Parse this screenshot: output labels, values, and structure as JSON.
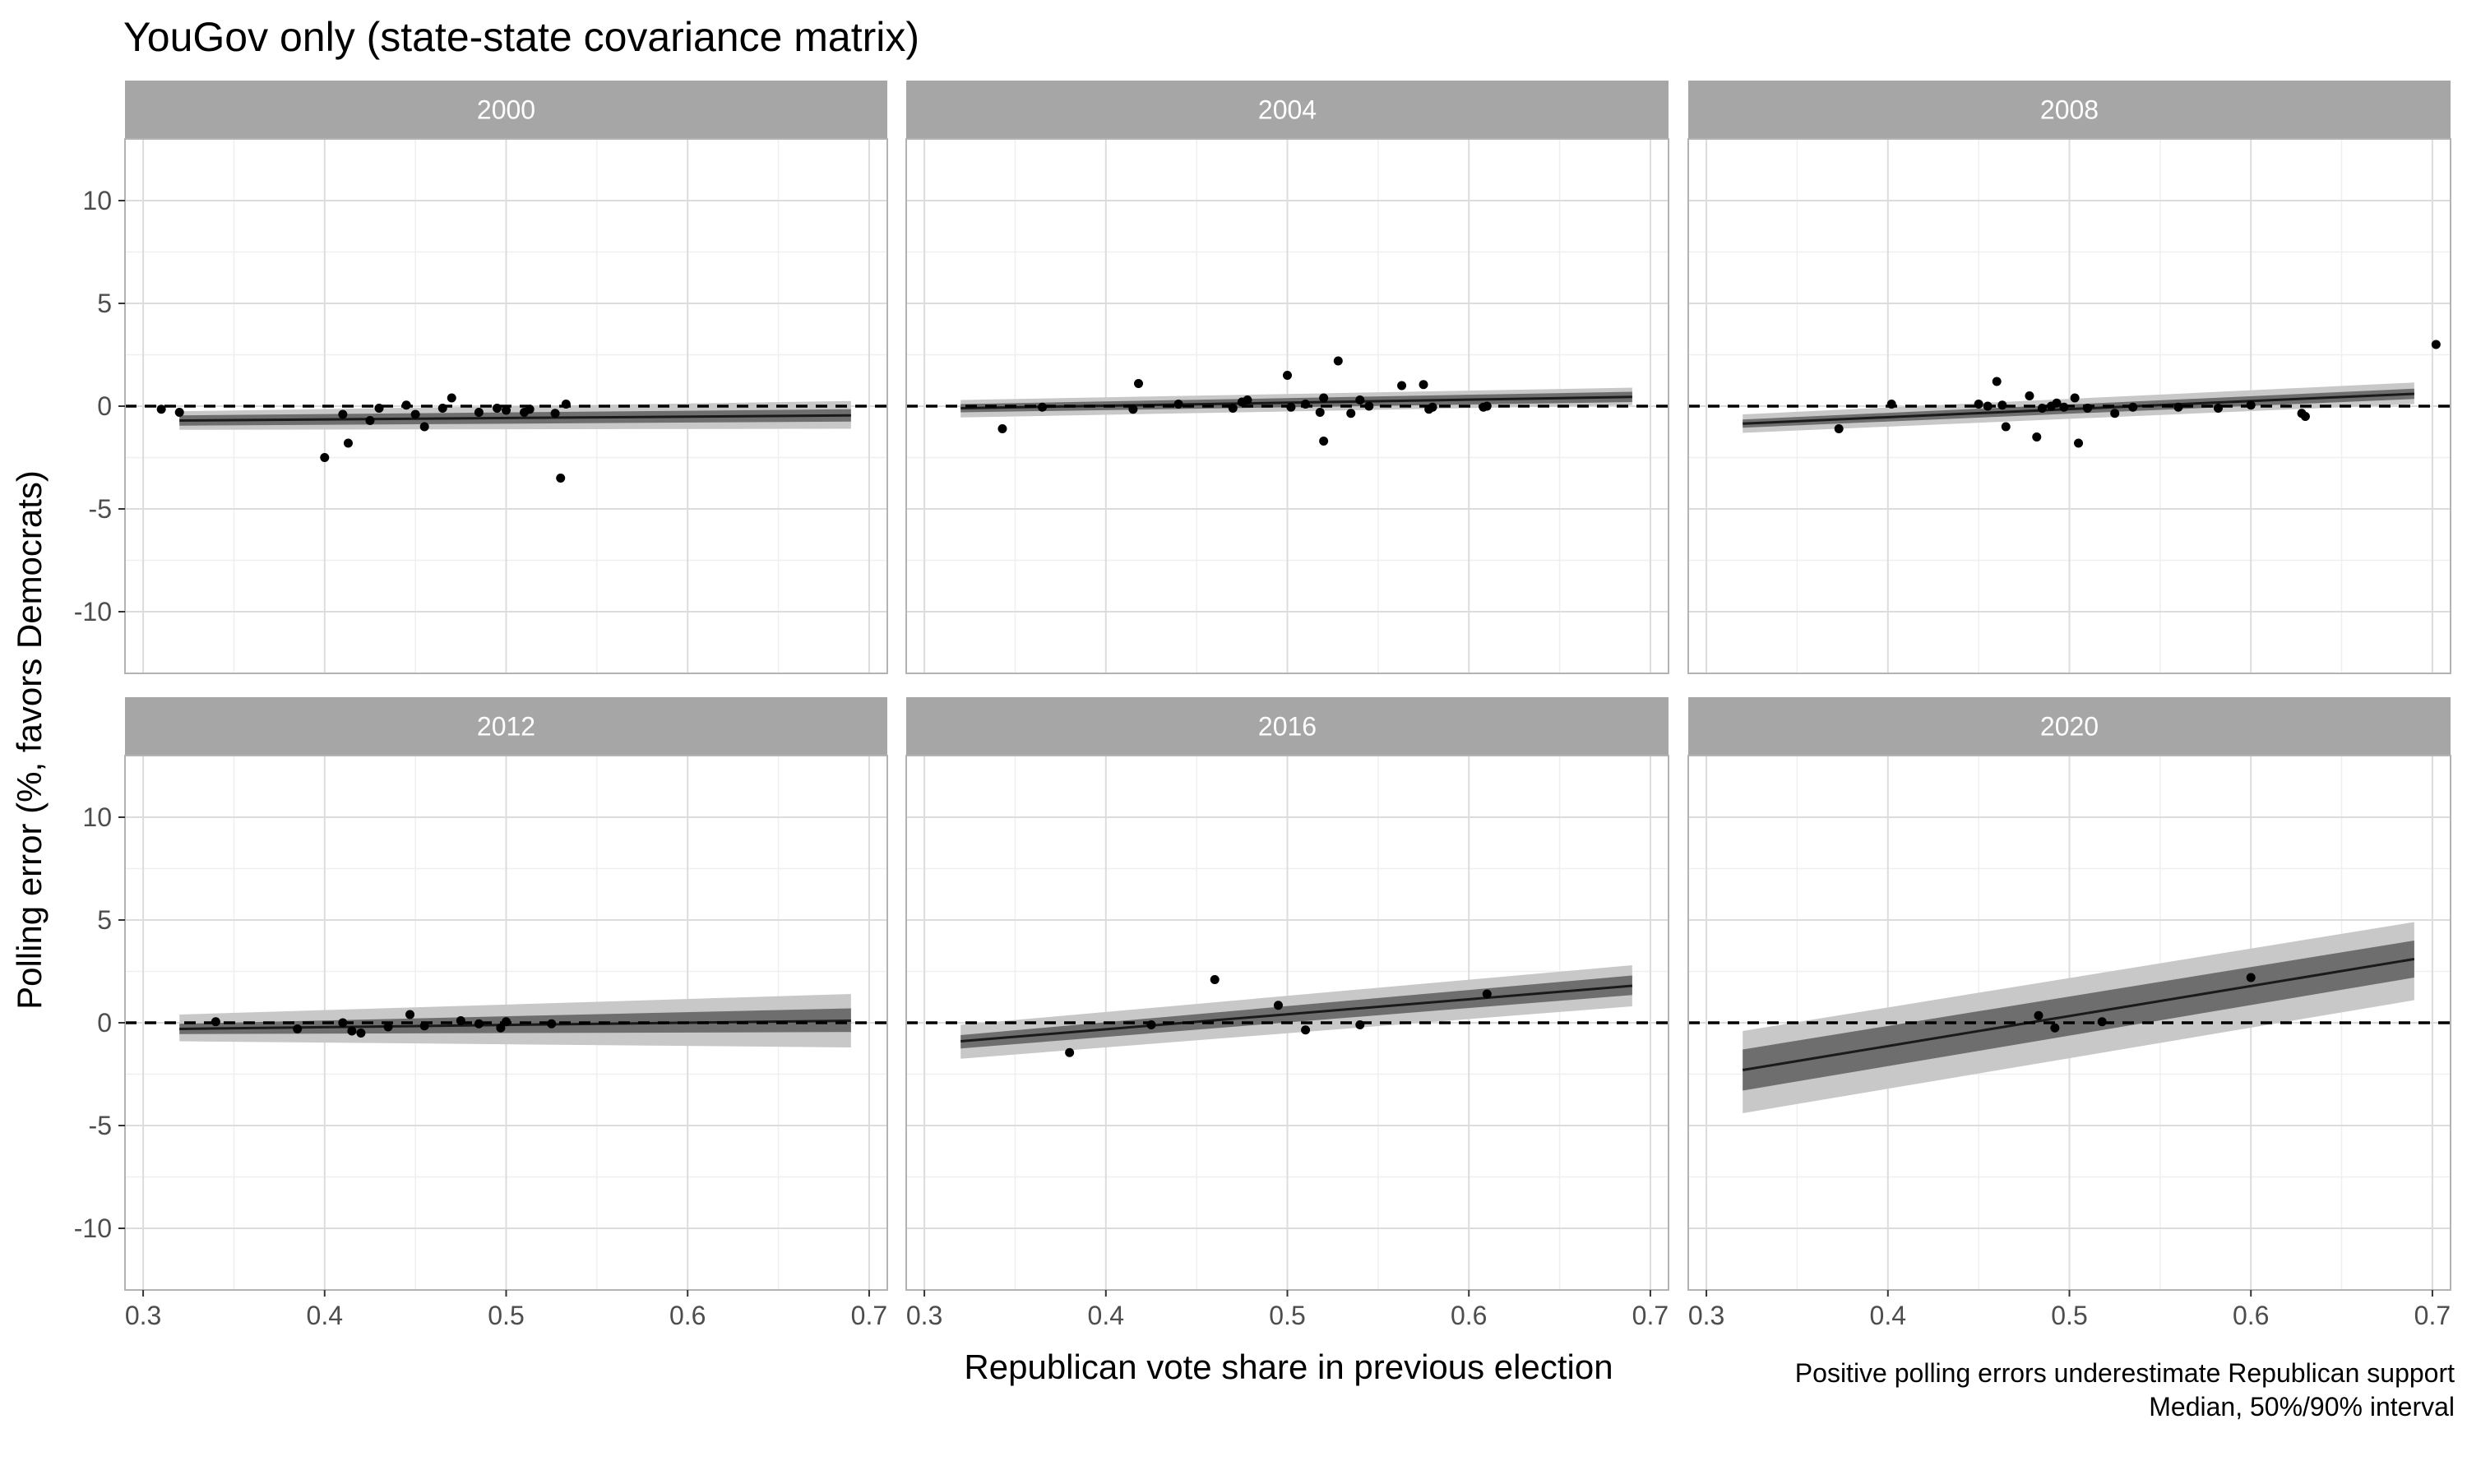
{
  "chart_data": {
    "type": "scatter",
    "title": "YouGov only (state-state covariance matrix)",
    "xlabel": "Republican vote share in previous election",
    "ylabel": "Polling error (%, favors Democrats)",
    "caption_lines": [
      "Positive polling errors underestimate Republican support",
      "Median, 50%/90% interval"
    ],
    "xlim": [
      0.29,
      0.71
    ],
    "ylim": [
      -13,
      13
    ],
    "x_ticks": [
      0.3,
      0.4,
      0.5,
      0.6,
      0.7
    ],
    "x_tick_labels": [
      "0.3",
      "0.4",
      "0.5",
      "0.6",
      "0.7"
    ],
    "y_ticks": [
      -10,
      -5,
      0,
      5,
      10
    ],
    "y_tick_labels": [
      "-10",
      "-5",
      "0",
      "5",
      "10"
    ],
    "grid": true,
    "reference_line": 0,
    "colors": {
      "strip": "#a6a6a6",
      "panel_border": "#b3b3b3",
      "grid_major": "#dcdcdc",
      "grid_minor": "#efefef",
      "band_outer": "#c8c8c8",
      "band_inner": "#6e6e6e",
      "line": "#1a1a1a",
      "point": "#000000"
    },
    "panels": [
      {
        "label": "2000",
        "x_range": [
          0.32,
          0.69
        ],
        "median": [
          -0.7,
          -0.45
        ],
        "band50": [
          [
            -0.95,
            -0.45
          ],
          [
            -0.75,
            -0.15
          ]
        ],
        "band90": [
          [
            -1.15,
            -0.25
          ],
          [
            -1.1,
            0.25
          ]
        ],
        "points": [
          [
            0.31,
            -0.15
          ],
          [
            0.32,
            -0.3
          ],
          [
            0.4,
            -2.5
          ],
          [
            0.41,
            -0.4
          ],
          [
            0.413,
            -1.8
          ],
          [
            0.425,
            -0.7
          ],
          [
            0.43,
            -0.1
          ],
          [
            0.445,
            0.05
          ],
          [
            0.45,
            -0.4
          ],
          [
            0.455,
            -1.0
          ],
          [
            0.465,
            -0.1
          ],
          [
            0.47,
            0.4
          ],
          [
            0.485,
            -0.3
          ],
          [
            0.495,
            -0.1
          ],
          [
            0.5,
            -0.2
          ],
          [
            0.51,
            -0.3
          ],
          [
            0.513,
            -0.15
          ],
          [
            0.527,
            -0.35
          ],
          [
            0.53,
            -3.5
          ],
          [
            0.533,
            0.1
          ]
        ]
      },
      {
        "label": "2004",
        "x_range": [
          0.32,
          0.69
        ],
        "median": [
          -0.1,
          0.45
        ],
        "band50": [
          [
            -0.3,
            0.1
          ],
          [
            0.2,
            0.7
          ]
        ],
        "band90": [
          [
            -0.55,
            0.3
          ],
          [
            0.05,
            0.9
          ]
        ],
        "points": [
          [
            0.343,
            -1.1
          ],
          [
            0.365,
            -0.05
          ],
          [
            0.415,
            -0.15
          ],
          [
            0.418,
            1.1
          ],
          [
            0.44,
            0.1
          ],
          [
            0.47,
            -0.1
          ],
          [
            0.475,
            0.2
          ],
          [
            0.478,
            0.3
          ],
          [
            0.5,
            1.5
          ],
          [
            0.502,
            -0.05
          ],
          [
            0.51,
            0.1
          ],
          [
            0.518,
            -0.3
          ],
          [
            0.52,
            0.4
          ],
          [
            0.52,
            -1.7
          ],
          [
            0.528,
            2.2
          ],
          [
            0.535,
            -0.35
          ],
          [
            0.54,
            0.3
          ],
          [
            0.545,
            0.0
          ],
          [
            0.563,
            1.0
          ],
          [
            0.575,
            1.05
          ],
          [
            0.578,
            -0.15
          ],
          [
            0.58,
            -0.05
          ],
          [
            0.608,
            -0.05
          ],
          [
            0.61,
            0.0
          ]
        ]
      },
      {
        "label": "2008",
        "x_range": [
          0.32,
          0.69
        ],
        "median": [
          -0.85,
          0.6
        ],
        "band50": [
          [
            -1.05,
            -0.65
          ],
          [
            0.35,
            0.85
          ]
        ],
        "band90": [
          [
            -1.3,
            -0.4
          ],
          [
            0.1,
            1.15
          ]
        ],
        "points": [
          [
            0.373,
            -1.1
          ],
          [
            0.402,
            0.1
          ],
          [
            0.45,
            0.1
          ],
          [
            0.455,
            0.0
          ],
          [
            0.46,
            1.2
          ],
          [
            0.463,
            0.05
          ],
          [
            0.465,
            -1.0
          ],
          [
            0.478,
            0.5
          ],
          [
            0.482,
            -1.5
          ],
          [
            0.485,
            -0.1
          ],
          [
            0.49,
            0.0
          ],
          [
            0.493,
            0.15
          ],
          [
            0.497,
            -0.05
          ],
          [
            0.503,
            0.4
          ],
          [
            0.505,
            -1.8
          ],
          [
            0.51,
            -0.1
          ],
          [
            0.525,
            -0.35
          ],
          [
            0.535,
            -0.05
          ],
          [
            0.56,
            -0.05
          ],
          [
            0.582,
            -0.1
          ],
          [
            0.6,
            0.05
          ],
          [
            0.628,
            -0.35
          ],
          [
            0.63,
            -0.5
          ],
          [
            0.702,
            3.0
          ]
        ]
      },
      {
        "label": "2012",
        "x_range": [
          0.32,
          0.69
        ],
        "median": [
          -0.3,
          0.1
        ],
        "band50": [
          [
            -0.55,
            -0.05
          ],
          [
            -0.45,
            0.7
          ]
        ],
        "band90": [
          [
            -0.9,
            0.4
          ],
          [
            -1.2,
            1.4
          ]
        ],
        "points": [
          [
            0.34,
            0.05
          ],
          [
            0.385,
            -0.3
          ],
          [
            0.41,
            0.0
          ],
          [
            0.415,
            -0.4
          ],
          [
            0.42,
            -0.5
          ],
          [
            0.435,
            -0.2
          ],
          [
            0.447,
            0.4
          ],
          [
            0.455,
            -0.15
          ],
          [
            0.475,
            0.1
          ],
          [
            0.485,
            -0.05
          ],
          [
            0.497,
            -0.25
          ],
          [
            0.5,
            0.05
          ],
          [
            0.525,
            -0.05
          ]
        ]
      },
      {
        "label": "2016",
        "x_range": [
          0.32,
          0.69
        ],
        "median": [
          -0.9,
          1.8
        ],
        "band50": [
          [
            -1.25,
            -0.6
          ],
          [
            1.35,
            2.3
          ]
        ],
        "band90": [
          [
            -1.75,
            -0.1
          ],
          [
            0.8,
            2.8
          ]
        ],
        "points": [
          [
            0.38,
            -1.45
          ],
          [
            0.425,
            -0.1
          ],
          [
            0.46,
            2.1
          ],
          [
            0.495,
            0.85
          ],
          [
            0.51,
            -0.35
          ],
          [
            0.54,
            -0.1
          ],
          [
            0.61,
            1.4
          ]
        ]
      },
      {
        "label": "2020",
        "x_range": [
          0.32,
          0.69
        ],
        "median": [
          -2.3,
          3.1
        ],
        "band50": [
          [
            -3.3,
            -1.3
          ],
          [
            2.2,
            4.0
          ]
        ],
        "band90": [
          [
            -4.4,
            -0.4
          ],
          [
            1.1,
            4.9
          ]
        ],
        "points": [
          [
            0.483,
            0.35
          ],
          [
            0.492,
            -0.25
          ],
          [
            0.518,
            0.05
          ],
          [
            0.6,
            2.2
          ]
        ]
      }
    ]
  }
}
